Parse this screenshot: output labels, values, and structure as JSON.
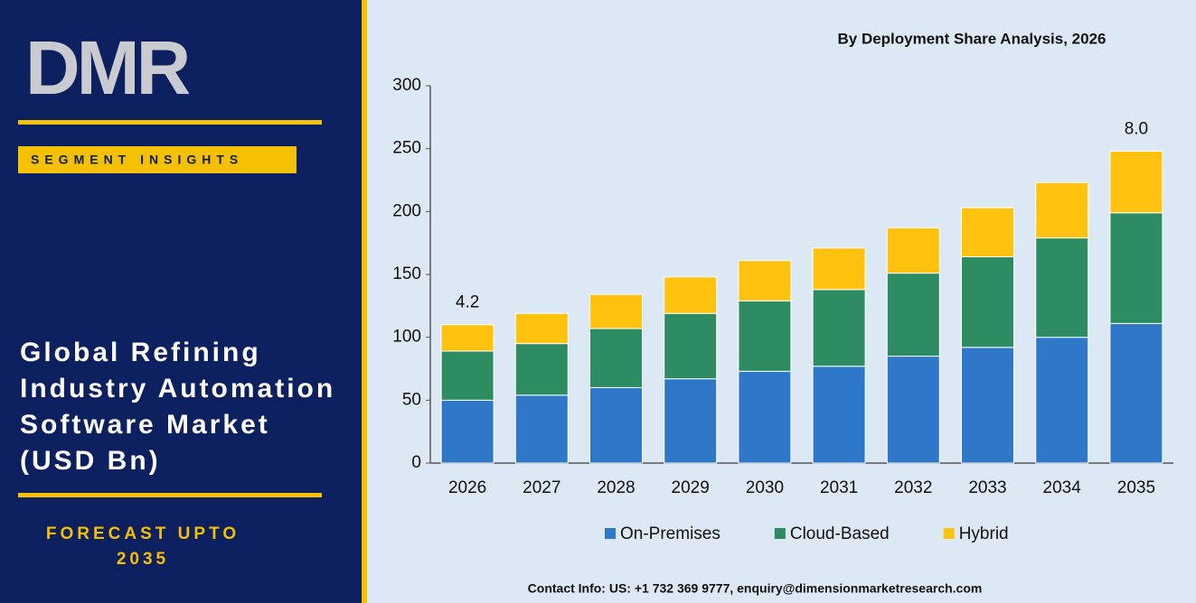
{
  "brand": {
    "logo": "DMR",
    "tag": "SEGMENT INSIGHTS",
    "title_lines": [
      "Global Refining",
      "Industry Automation",
      "Software Market",
      "(USD Bn)"
    ],
    "forecast_lines": [
      "FORECAST UPTO",
      "2035"
    ]
  },
  "chart_data": {
    "type": "stacked_bar",
    "title": "By Deployment Share Analysis, 2026",
    "categories": [
      "2026",
      "2027",
      "2028",
      "2029",
      "2030",
      "2031",
      "2032",
      "2033",
      "2034",
      "2035"
    ],
    "series": [
      {
        "name": "On-Premises",
        "color": "#2f78c9",
        "values": [
          50,
          54,
          60,
          67,
          73,
          77,
          85,
          92,
          100,
          111
        ]
      },
      {
        "name": "Cloud-Based",
        "color": "#2e8c62",
        "values": [
          39,
          41,
          47,
          52,
          56,
          61,
          66,
          72,
          79,
          88
        ]
      },
      {
        "name": "Hybrid",
        "color": "#ffc20e",
        "values": [
          21,
          24,
          27,
          29,
          32,
          33,
          36,
          39,
          44,
          49
        ]
      }
    ],
    "ylim": [
      0,
      300
    ],
    "yticks": [
      0,
      50,
      100,
      150,
      200,
      250,
      300
    ],
    "legend": "bottom",
    "annotations": [
      {
        "text": "4.2",
        "x": "2026"
      },
      {
        "text": "8.0",
        "x": "2035"
      }
    ]
  },
  "footer": {
    "contact": "Contact Info: US: +1 732 369 9777, enquiry@dimensionmarketresearch.com"
  }
}
